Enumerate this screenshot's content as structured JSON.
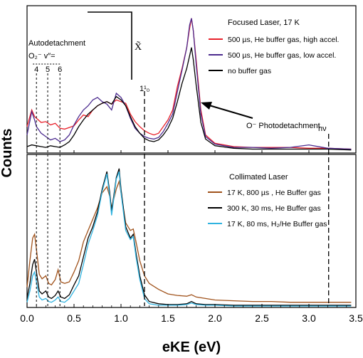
{
  "chart_data": [
    {
      "type": "line",
      "panel_label": "Focused Laser, 17 K",
      "xlim": [
        0.0,
        3.5
      ],
      "legend_position": "top-right",
      "series": [
        {
          "name": "500 µs, He buffer gas, high accel.",
          "color": "#e8212b",
          "x": [
            0.0,
            0.05,
            0.08,
            0.12,
            0.15,
            0.2,
            0.25,
            0.3,
            0.35,
            0.4,
            0.45,
            0.5,
            0.55,
            0.6,
            0.65,
            0.7,
            0.75,
            0.8,
            0.85,
            0.9,
            0.95,
            1.0,
            1.05,
            1.1,
            1.15,
            1.2,
            1.25,
            1.3,
            1.35,
            1.4,
            1.45,
            1.5,
            1.55,
            1.6,
            1.65,
            1.7,
            1.73,
            1.75,
            1.77,
            1.8,
            1.85,
            1.9,
            2.0,
            2.2,
            2.4,
            2.6,
            2.8,
            3.0,
            3.2,
            3.45
          ],
          "y": [
            0.3,
            0.5,
            0.42,
            0.38,
            0.35,
            0.36,
            0.32,
            0.34,
            0.28,
            0.27,
            0.29,
            0.31,
            0.38,
            0.44,
            0.42,
            0.5,
            0.55,
            0.58,
            0.6,
            0.57,
            0.62,
            0.6,
            0.58,
            0.45,
            0.36,
            0.3,
            0.25,
            0.22,
            0.2,
            0.22,
            0.3,
            0.38,
            0.5,
            0.78,
            1.0,
            1.25,
            1.48,
            1.6,
            1.45,
            1.1,
            0.5,
            0.2,
            0.1,
            0.06,
            0.05,
            0.05,
            0.05,
            0.04,
            0.04,
            0.03
          ]
        },
        {
          "name": "500 µs, He buffer gas, low accel.",
          "color": "#4b2a8e",
          "x": [
            0.0,
            0.05,
            0.08,
            0.1,
            0.15,
            0.2,
            0.25,
            0.3,
            0.35,
            0.4,
            0.45,
            0.5,
            0.55,
            0.6,
            0.65,
            0.7,
            0.75,
            0.8,
            0.85,
            0.9,
            0.95,
            1.0,
            1.05,
            1.1,
            1.15,
            1.2,
            1.25,
            1.3,
            1.35,
            1.4,
            1.45,
            1.5,
            1.55,
            1.6,
            1.65,
            1.7,
            1.73,
            1.75,
            1.77,
            1.8,
            1.85,
            1.9,
            2.0,
            2.2,
            2.4,
            2.6,
            2.8,
            3.0,
            3.2,
            3.45
          ],
          "y": [
            0.2,
            0.48,
            0.38,
            0.3,
            0.22,
            0.18,
            0.14,
            0.16,
            0.12,
            0.14,
            0.2,
            0.32,
            0.42,
            0.5,
            0.55,
            0.62,
            0.65,
            0.6,
            0.57,
            0.5,
            0.7,
            0.65,
            0.55,
            0.4,
            0.28,
            0.22,
            0.18,
            0.16,
            0.15,
            0.17,
            0.24,
            0.34,
            0.45,
            0.72,
            0.98,
            1.25,
            1.52,
            1.6,
            1.45,
            1.05,
            0.45,
            0.18,
            0.09,
            0.05,
            0.05,
            0.04,
            0.05,
            0.08,
            0.04,
            0.03
          ]
        },
        {
          "name": "no buffer gas",
          "color": "#000000",
          "x": [
            0.0,
            0.05,
            0.1,
            0.15,
            0.2,
            0.25,
            0.3,
            0.35,
            0.4,
            0.45,
            0.5,
            0.55,
            0.6,
            0.65,
            0.7,
            0.75,
            0.8,
            0.85,
            0.9,
            0.95,
            1.0,
            1.05,
            1.1,
            1.15,
            1.2,
            1.25,
            1.3,
            1.35,
            1.4,
            1.45,
            1.5,
            1.55,
            1.6,
            1.65,
            1.7,
            1.73,
            1.75,
            1.77,
            1.8,
            1.85,
            1.9,
            2.0,
            2.2,
            2.4,
            2.6,
            2.8,
            3.0,
            3.2,
            3.45
          ],
          "y": [
            0.06,
            0.08,
            0.07,
            0.06,
            0.05,
            0.07,
            0.06,
            0.05,
            0.08,
            0.12,
            0.2,
            0.3,
            0.38,
            0.45,
            0.5,
            0.55,
            0.58,
            0.6,
            0.57,
            0.66,
            0.62,
            0.55,
            0.42,
            0.3,
            0.22,
            0.16,
            0.13,
            0.12,
            0.14,
            0.2,
            0.28,
            0.4,
            0.6,
            0.82,
            1.0,
            1.15,
            1.25,
            1.1,
            0.8,
            0.35,
            0.15,
            0.07,
            0.04,
            0.03,
            0.03,
            0.03,
            0.03,
            0.03,
            0.02
          ]
        }
      ]
    },
    {
      "type": "line",
      "panel_label": "Collimated Laser",
      "xlabel": "eKE (eV)",
      "ylabel": "Counts",
      "xlim": [
        0.0,
        3.5
      ],
      "xticks": [
        "0.0",
        "0.5",
        "1.0",
        "1.5",
        "2.0",
        "2.5",
        "3.0",
        "3.5"
      ],
      "legend_position": "top-right",
      "series": [
        {
          "name": "17 K, 800 µs , He Buffer gas",
          "color": "#a0521b",
          "x": [
            0.0,
            0.03,
            0.06,
            0.08,
            0.1,
            0.13,
            0.16,
            0.2,
            0.23,
            0.26,
            0.3,
            0.33,
            0.36,
            0.4,
            0.45,
            0.5,
            0.55,
            0.6,
            0.65,
            0.7,
            0.75,
            0.8,
            0.85,
            0.88,
            0.9,
            0.95,
            0.98,
            1.0,
            1.05,
            1.1,
            1.13,
            1.16,
            1.2,
            1.25,
            1.3,
            1.4,
            1.5,
            1.6,
            1.7,
            1.75,
            1.8,
            1.9,
            2.0,
            2.2,
            2.4,
            2.6,
            2.8,
            3.0,
            3.2,
            3.45
          ],
          "y": [
            0.25,
            0.6,
            0.9,
            0.95,
            0.75,
            0.42,
            0.36,
            0.4,
            0.3,
            0.28,
            0.35,
            0.48,
            0.32,
            0.3,
            0.32,
            0.45,
            0.6,
            0.85,
            1.0,
            1.15,
            1.3,
            1.5,
            1.58,
            1.45,
            1.3,
            1.55,
            1.65,
            1.5,
            1.1,
            1.0,
            1.02,
            0.85,
            0.6,
            0.4,
            0.3,
            0.22,
            0.16,
            0.14,
            0.13,
            0.15,
            0.12,
            0.1,
            0.08,
            0.07,
            0.06,
            0.06,
            0.05,
            0.05,
            0.05,
            0.05
          ]
        },
        {
          "name": "300 K, 30 ms, He Buffer gas",
          "color": "#000000",
          "x": [
            0.0,
            0.03,
            0.06,
            0.08,
            0.1,
            0.13,
            0.16,
            0.2,
            0.23,
            0.26,
            0.3,
            0.33,
            0.36,
            0.4,
            0.45,
            0.5,
            0.55,
            0.6,
            0.65,
            0.7,
            0.75,
            0.8,
            0.85,
            0.88,
            0.9,
            0.95,
            0.98,
            1.0,
            1.05,
            1.1,
            1.13,
            1.16,
            1.2,
            1.25,
            1.3,
            1.4,
            1.5,
            1.6,
            1.7,
            1.75,
            1.8,
            1.9,
            2.0,
            2.2,
            2.4,
            2.6,
            2.8,
            3.0,
            3.2,
            3.45
          ],
          "y": [
            0.1,
            0.3,
            0.55,
            0.62,
            0.45,
            0.2,
            0.16,
            0.2,
            0.12,
            0.1,
            0.14,
            0.2,
            0.12,
            0.1,
            0.15,
            0.28,
            0.4,
            0.65,
            0.9,
            1.05,
            1.25,
            1.55,
            1.78,
            1.5,
            1.25,
            1.7,
            1.82,
            1.55,
            1.05,
            0.9,
            0.95,
            0.7,
            0.4,
            0.15,
            0.06,
            0.03,
            0.02,
            0.02,
            0.03,
            0.06,
            0.03,
            0.02,
            0.02,
            0.01,
            0.01,
            0.01,
            0.01,
            0.01,
            0.01,
            0.01
          ]
        },
        {
          "name": "17 K, 80 ms, H₂/He Buffer gas",
          "color": "#2fb3e0",
          "x": [
            0.0,
            0.03,
            0.06,
            0.08,
            0.1,
            0.13,
            0.16,
            0.2,
            0.23,
            0.26,
            0.3,
            0.33,
            0.36,
            0.4,
            0.45,
            0.5,
            0.55,
            0.6,
            0.65,
            0.7,
            0.75,
            0.8,
            0.85,
            0.88,
            0.9,
            0.95,
            0.98,
            1.0,
            1.05,
            1.1,
            1.13,
            1.16,
            1.2,
            1.25,
            1.3,
            1.4,
            1.5,
            1.6,
            1.7,
            1.75,
            1.8,
            1.9,
            2.0,
            2.2,
            2.4,
            2.6,
            2.8,
            3.0,
            3.2,
            3.45
          ],
          "y": [
            0.05,
            0.2,
            0.4,
            0.45,
            0.32,
            0.12,
            0.08,
            0.1,
            0.06,
            0.05,
            0.08,
            0.12,
            0.06,
            0.05,
            0.1,
            0.2,
            0.3,
            0.55,
            0.82,
            1.0,
            1.2,
            1.52,
            1.75,
            1.45,
            1.2,
            1.68,
            1.78,
            1.5,
            1.0,
            0.88,
            0.92,
            0.65,
            0.35,
            0.1,
            0.03,
            0.01,
            0.01,
            0.01,
            0.02,
            0.04,
            0.02,
            0.01,
            0.01,
            0.0,
            0.0,
            0.0,
            0.0,
            0.0,
            0.0,
            0.0
          ]
        }
      ]
    }
  ],
  "annotations": {
    "autodetachment_title": "Autodetachment",
    "autodetachment_label": "O₂⁻  v″=",
    "vib_levels": [
      {
        "label": "4",
        "x": 0.1
      },
      {
        "label": "5",
        "x": 0.22
      },
      {
        "label": "6",
        "x": 0.35
      }
    ],
    "x_state_label": "X̃",
    "one_one_label": "1¹₀",
    "one_one_x": 1.25,
    "o_minus_label": "O⁻ Photodetachment",
    "hv_label": "hν",
    "hv_x": 3.21
  }
}
